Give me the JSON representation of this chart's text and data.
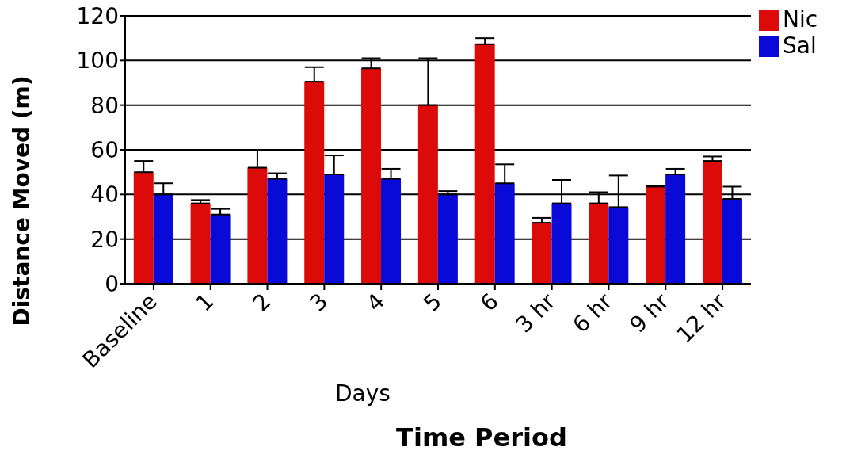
{
  "chart_data": {
    "type": "bar",
    "xlabel": "Time Period",
    "ylabel": "Distance Moved (m)",
    "annotations": [
      "Days"
    ],
    "categories": [
      "Baseline",
      "1",
      "2",
      "3",
      "4",
      "5",
      "6",
      "3 hr",
      "6 hr",
      "9 hr",
      "12 hr"
    ],
    "series": [
      {
        "name": "Nic",
        "color": "#dd0a0a",
        "values": [
          50,
          36,
          52,
          90.5,
          96.5,
          80,
          107.3,
          27.3,
          36,
          43.5,
          55
        ],
        "errors": [
          [
            50,
            55
          ],
          [
            36,
            37.5
          ],
          [
            52,
            60
          ],
          [
            90.5,
            97
          ],
          [
            96.5,
            101
          ],
          [
            80,
            101
          ],
          [
            107.3,
            110
          ],
          [
            27.3,
            29.5
          ],
          [
            36,
            41
          ],
          [
            43.5,
            44
          ],
          [
            55,
            57
          ]
        ]
      },
      {
        "name": "Sal",
        "color": "#0a0ad8",
        "values": [
          40,
          31,
          47,
          49,
          47,
          40,
          45,
          36,
          34.3,
          49,
          38
        ],
        "errors": [
          [
            40,
            45
          ],
          [
            31,
            33.5
          ],
          [
            47,
            49.5
          ],
          [
            49,
            57.5
          ],
          [
            47,
            51.5
          ],
          [
            40,
            41.5
          ],
          [
            45,
            53.5
          ],
          [
            36,
            46.5
          ],
          [
            34.3,
            48.5
          ],
          [
            49,
            51.5
          ],
          [
            38,
            43.5
          ]
        ]
      }
    ],
    "ylim": [
      0,
      120
    ],
    "yticks": [
      0,
      20,
      40,
      60,
      80,
      100,
      120
    ],
    "grid": "y",
    "legend": "top right"
  }
}
